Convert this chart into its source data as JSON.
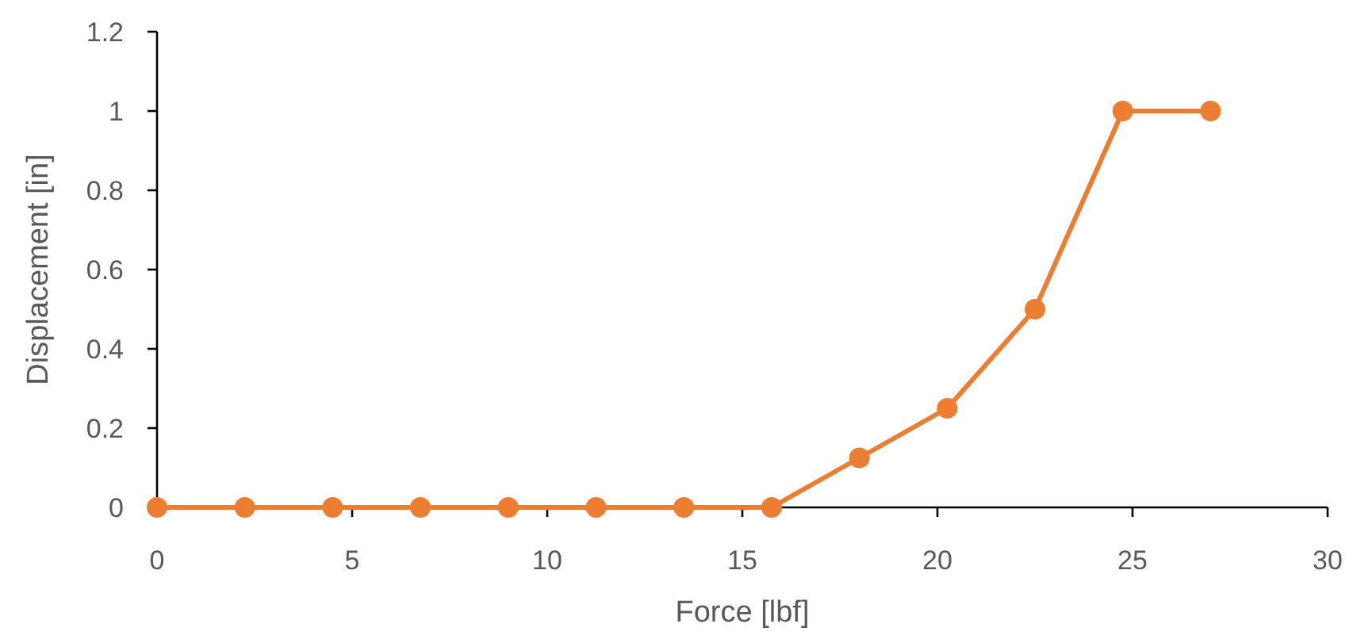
{
  "chart_data": {
    "type": "line",
    "xlabel": "Force [lbf]",
    "ylabel": "Displacement [in]",
    "x": [
      0,
      2.25,
      4.5,
      6.75,
      9,
      11.25,
      13.5,
      15.75,
      18,
      20.25,
      22.5,
      24.75,
      27
    ],
    "series": [
      {
        "color": "#ed7d31",
        "values": [
          0,
          0,
          0,
          0,
          0,
          0,
          0,
          0,
          0.125,
          0.25,
          0.5,
          1,
          1
        ]
      }
    ],
    "xlim": [
      0,
      30
    ],
    "xticks": [
      0,
      5,
      10,
      15,
      20,
      25,
      30
    ],
    "ylim": [
      0,
      1.2
    ],
    "yticks": [
      0,
      0.2,
      0.4,
      0.6,
      0.8,
      1,
      1.2
    ],
    "grid": false,
    "marker": "circle",
    "line_style": "solid"
  }
}
